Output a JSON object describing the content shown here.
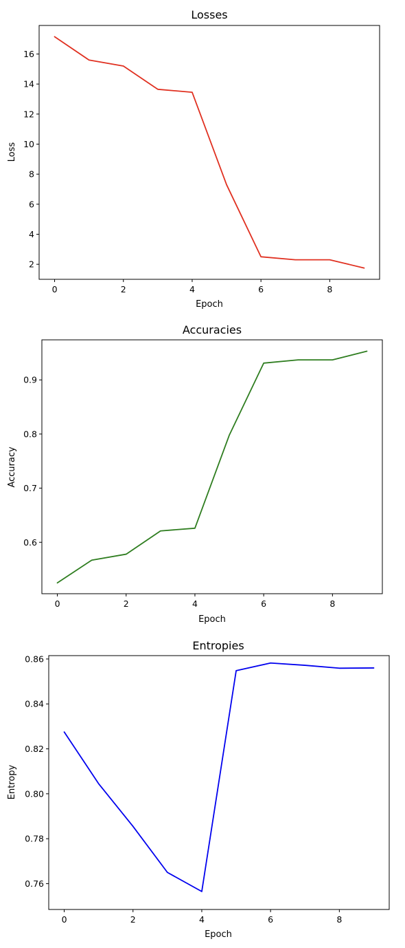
{
  "chart_data": [
    {
      "type": "line",
      "title": "Losses",
      "xlabel": "Epoch",
      "ylabel": "Loss",
      "x": [
        0,
        1,
        2,
        3,
        4,
        5,
        6,
        7,
        8,
        9
      ],
      "series": [
        {
          "color": "#e03020",
          "values": [
            17.15,
            15.6,
            15.2,
            13.65,
            13.45,
            7.3,
            2.5,
            2.3,
            2.3,
            1.75
          ]
        }
      ],
      "xlim": [
        -0.45,
        9.45
      ],
      "ylim": [
        1.0,
        17.9
      ],
      "xticks": [
        "0",
        "2",
        "4",
        "6",
        "8"
      ],
      "yticks": [
        "2",
        "4",
        "6",
        "8",
        "10",
        "12",
        "14",
        "16"
      ],
      "grid": false
    },
    {
      "type": "line",
      "title": "Accuracies",
      "xlabel": "Epoch",
      "ylabel": "Accuracy",
      "x": [
        0,
        1,
        2,
        3,
        4,
        5,
        6,
        7,
        8,
        9
      ],
      "series": [
        {
          "color": "#2e7d1f",
          "values": [
            0.525,
            0.567,
            0.578,
            0.621,
            0.626,
            0.798,
            0.931,
            0.937,
            0.937,
            0.953
          ]
        }
      ],
      "xlim": [
        -0.45,
        9.45
      ],
      "ylim": [
        0.505,
        0.974
      ],
      "xticks": [
        "0",
        "2",
        "4",
        "6",
        "8"
      ],
      "yticks": [
        "0.6",
        "0.7",
        "0.8",
        "0.9"
      ],
      "grid": false
    },
    {
      "type": "line",
      "title": "Entropies",
      "xlabel": "Epoch",
      "ylabel": "Entropy",
      "x": [
        0,
        1,
        2,
        3,
        4,
        5,
        6,
        7,
        8,
        9
      ],
      "series": [
        {
          "color": "#0000ee",
          "values": [
            0.8275,
            0.8045,
            0.7855,
            0.765,
            0.7565,
            0.8548,
            0.8582,
            0.8572,
            0.8559,
            0.856
          ]
        }
      ],
      "xlim": [
        -0.45,
        9.45
      ],
      "ylim": [
        0.7485,
        0.8615
      ],
      "xticks": [
        "0",
        "2",
        "4",
        "6",
        "8"
      ],
      "yticks": [
        "0.76",
        "0.78",
        "0.80",
        "0.82",
        "0.84",
        "0.86"
      ],
      "grid": false
    }
  ]
}
